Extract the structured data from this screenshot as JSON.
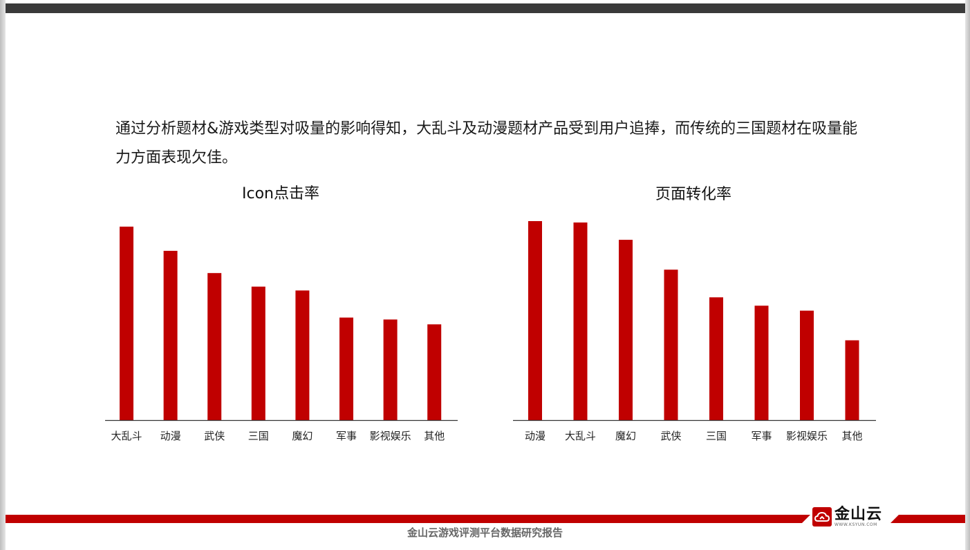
{
  "summary_text": "通过分析题材&游戏类型对吸量的影响得知，大乱斗及动漫题材产品受到用户追捧，而传统的三国题材在吸量能力方面表现欠佳。",
  "footer": {
    "caption": "金山云游戏评测平台数据研究报告",
    "logo_name": "金山云",
    "logo_url": "WWW.KSYUN.COM"
  },
  "colors": {
    "bar": "#c00000",
    "accent": "#c00000",
    "top_bar": "#3a3a3a"
  },
  "chart_data": [
    {
      "type": "bar",
      "title": "Icon点击率",
      "categories": [
        "大乱斗",
        "动漫",
        "武侠",
        "三国",
        "魔幻",
        "军事",
        "影视娱乐",
        "其他"
      ],
      "values": [
        100,
        87.5,
        76,
        69,
        67,
        53,
        52,
        49.5
      ],
      "ylim": [
        0,
        100
      ],
      "grid": false,
      "legend": "none"
    },
    {
      "type": "bar",
      "title": "页面转化率",
      "categories": [
        "动漫",
        "大乱斗",
        "魔幻",
        "武侠",
        "三国",
        "军事",
        "影视娱乐",
        "其他"
      ],
      "values": [
        100,
        99.3,
        90.6,
        75.6,
        61.7,
        57.5,
        55,
        40.1
      ],
      "ylim": [
        0,
        100
      ],
      "grid": false,
      "legend": "none"
    }
  ]
}
